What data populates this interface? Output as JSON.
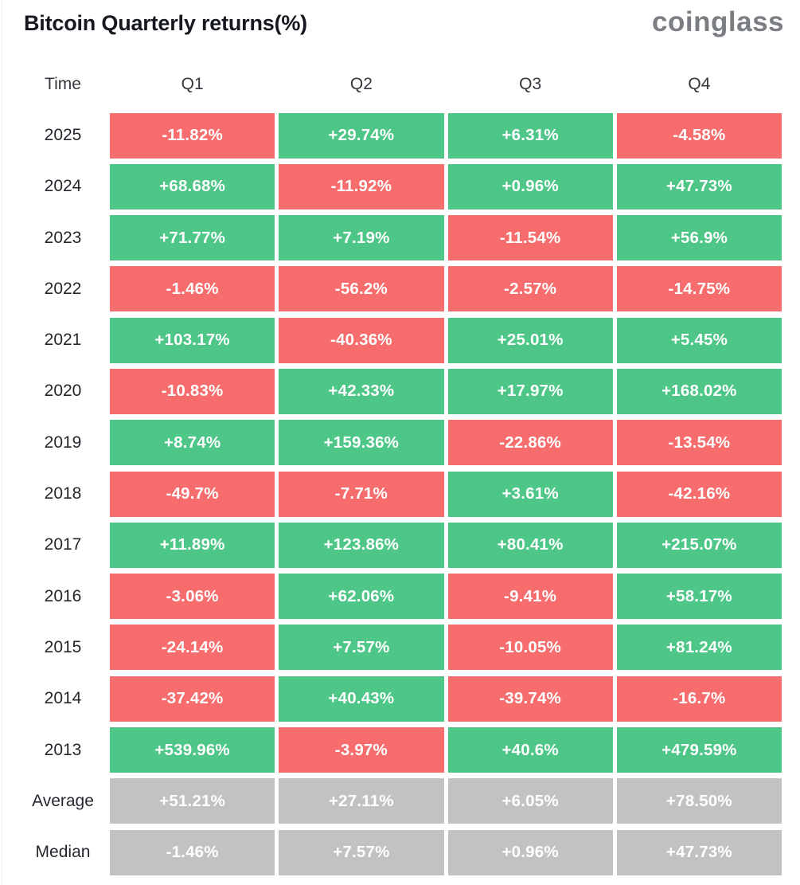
{
  "page": {
    "title": "Bitcoin Quarterly returns(%)",
    "logo_text": "coinglass"
  },
  "chart_data": {
    "type": "heatmap",
    "title": "Bitcoin Quarterly returns(%)",
    "columns": [
      "Time",
      "Q1",
      "Q2",
      "Q3",
      "Q4"
    ],
    "colors": {
      "positive": "#4DC687",
      "negative": "#F76D6D",
      "stat": "#C2C2C2",
      "cell_text": "#FFFFFF"
    },
    "rows": [
      {
        "label": "2025",
        "values": [
          "-11.82%",
          "+29.74%",
          "+6.31%",
          "-4.58%"
        ],
        "tones": [
          "neg",
          "pos",
          "pos",
          "neg"
        ]
      },
      {
        "label": "2024",
        "values": [
          "+68.68%",
          "-11.92%",
          "+0.96%",
          "+47.73%"
        ],
        "tones": [
          "pos",
          "neg",
          "pos",
          "pos"
        ]
      },
      {
        "label": "2023",
        "values": [
          "+71.77%",
          "+7.19%",
          "-11.54%",
          "+56.9%"
        ],
        "tones": [
          "pos",
          "pos",
          "neg",
          "pos"
        ]
      },
      {
        "label": "2022",
        "values": [
          "-1.46%",
          "-56.2%",
          "-2.57%",
          "-14.75%"
        ],
        "tones": [
          "neg",
          "neg",
          "neg",
          "neg"
        ]
      },
      {
        "label": "2021",
        "values": [
          "+103.17%",
          "-40.36%",
          "+25.01%",
          "+5.45%"
        ],
        "tones": [
          "pos",
          "neg",
          "pos",
          "pos"
        ]
      },
      {
        "label": "2020",
        "values": [
          "-10.83%",
          "+42.33%",
          "+17.97%",
          "+168.02%"
        ],
        "tones": [
          "neg",
          "pos",
          "pos",
          "pos"
        ]
      },
      {
        "label": "2019",
        "values": [
          "+8.74%",
          "+159.36%",
          "-22.86%",
          "-13.54%"
        ],
        "tones": [
          "pos",
          "pos",
          "neg",
          "neg"
        ]
      },
      {
        "label": "2018",
        "values": [
          "-49.7%",
          "-7.71%",
          "+3.61%",
          "-42.16%"
        ],
        "tones": [
          "neg",
          "neg",
          "pos",
          "neg"
        ]
      },
      {
        "label": "2017",
        "values": [
          "+11.89%",
          "+123.86%",
          "+80.41%",
          "+215.07%"
        ],
        "tones": [
          "pos",
          "pos",
          "pos",
          "pos"
        ]
      },
      {
        "label": "2016",
        "values": [
          "-3.06%",
          "+62.06%",
          "-9.41%",
          "+58.17%"
        ],
        "tones": [
          "neg",
          "pos",
          "neg",
          "pos"
        ]
      },
      {
        "label": "2015",
        "values": [
          "-24.14%",
          "+7.57%",
          "-10.05%",
          "+81.24%"
        ],
        "tones": [
          "neg",
          "pos",
          "neg",
          "pos"
        ]
      },
      {
        "label": "2014",
        "values": [
          "-37.42%",
          "+40.43%",
          "-39.74%",
          "-16.7%"
        ],
        "tones": [
          "neg",
          "pos",
          "neg",
          "neg"
        ]
      },
      {
        "label": "2013",
        "values": [
          "+539.96%",
          "-3.97%",
          "+40.6%",
          "+479.59%"
        ],
        "tones": [
          "pos",
          "neg",
          "pos",
          "pos"
        ]
      },
      {
        "label": "Average",
        "values": [
          "+51.21%",
          "+27.11%",
          "+6.05%",
          "+78.50%"
        ],
        "tones": [
          "stat",
          "stat",
          "stat",
          "stat"
        ]
      },
      {
        "label": "Median",
        "values": [
          "-1.46%",
          "+7.57%",
          "+0.96%",
          "+47.73%"
        ],
        "tones": [
          "stat",
          "stat",
          "stat",
          "stat"
        ]
      }
    ]
  }
}
